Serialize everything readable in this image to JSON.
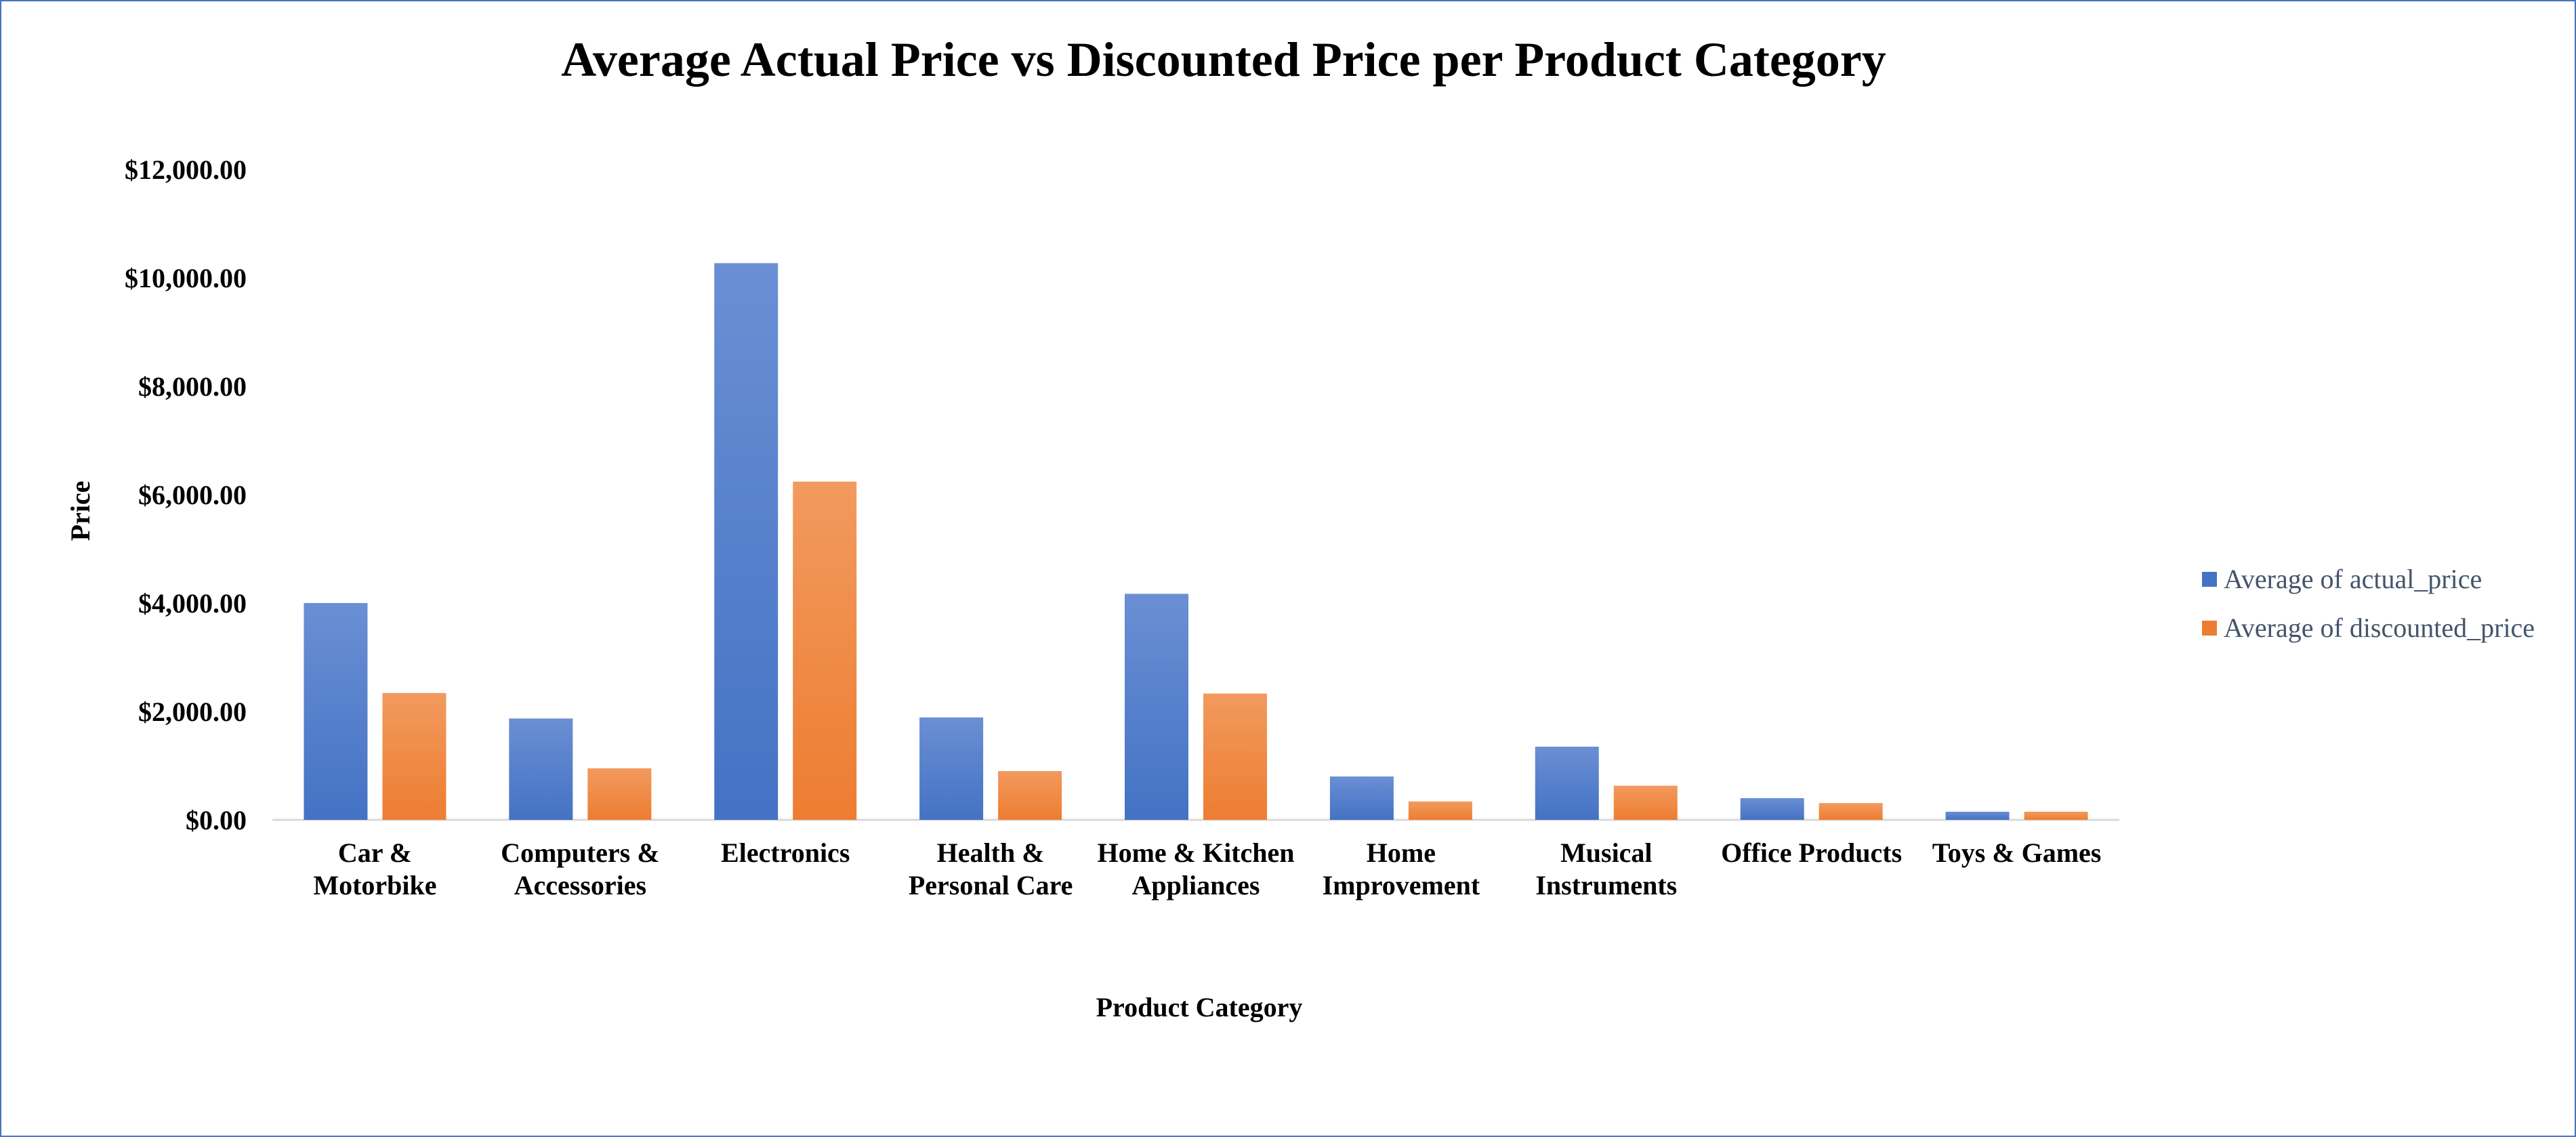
{
  "chart_data": {
    "type": "bar",
    "title": "Average Actual Price vs Discounted Price per Product Category",
    "xlabel": "Product Category",
    "ylabel": "Price",
    "ylim": [
      0,
      12000
    ],
    "yticks": [
      0,
      2000,
      4000,
      6000,
      8000,
      10000,
      12000
    ],
    "ytick_labels": [
      "$0.00",
      "$2,000.00",
      "$4,000.00",
      "$6,000.00",
      "$8,000.00",
      "$10,000.00",
      "$12,000.00"
    ],
    "categories": [
      [
        "Car &",
        "Motorbike"
      ],
      [
        "Computers &",
        "Accessories"
      ],
      [
        "Electronics"
      ],
      [
        "Health &",
        "Personal Care"
      ],
      [
        "Home & Kitchen",
        "Appliances"
      ],
      [
        "Home",
        "Improvement"
      ],
      [
        "Musical",
        "Instruments"
      ],
      [
        "Office Products"
      ],
      [
        "Toys & Games"
      ]
    ],
    "series": [
      {
        "name": "Average of actual_price",
        "color": "#4472c4",
        "color_top": "#6a8fd4",
        "values": [
          4000,
          1870,
          10270,
          1890,
          4170,
          800,
          1350,
          400,
          150
        ]
      },
      {
        "name": "Average of discounted_price",
        "color": "#ed7d31",
        "color_top": "#f29a5e",
        "values": [
          2340,
          950,
          6240,
          900,
          2330,
          340,
          630,
          310,
          150
        ]
      }
    ],
    "grid": false,
    "legend_position": "right"
  }
}
